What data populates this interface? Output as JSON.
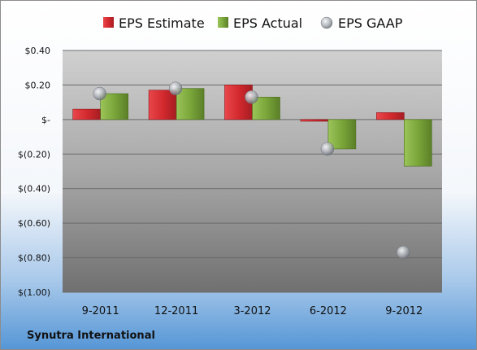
{
  "colors": {
    "estimate": "#d42a2f",
    "actual": "#7aa63a",
    "gaap": "#9fa5ac",
    "frame_top": "#ffffff",
    "frame_bottom": "#5596d6"
  },
  "legend": {
    "estimate_label": "EPS Estimate",
    "actual_label": "EPS Actual",
    "gaap_label": "EPS GAAP"
  },
  "footer": {
    "company": "Synutra International"
  },
  "chart_data": {
    "type": "bar",
    "title": "",
    "xlabel": "",
    "ylabel": "",
    "categories": [
      "9-2011",
      "12-2011",
      "3-2012",
      "6-2012",
      "9-2012"
    ],
    "series": [
      {
        "name": "EPS Estimate",
        "kind": "bar",
        "values": [
          0.06,
          0.17,
          0.2,
          -0.01,
          0.04
        ]
      },
      {
        "name": "EPS Actual",
        "kind": "bar",
        "values": [
          0.15,
          0.18,
          0.13,
          -0.17,
          -0.27
        ]
      },
      {
        "name": "EPS GAAP",
        "kind": "scatter",
        "values": [
          0.15,
          0.18,
          0.13,
          -0.17,
          -0.77
        ]
      }
    ],
    "ylim": [
      -1.0,
      0.4
    ],
    "y_ticks": [
      0.4,
      0.2,
      0,
      -0.2,
      -0.4,
      -0.6,
      -0.8,
      -1.0
    ],
    "y_tick_labels": [
      "$0.40",
      "$0.20",
      "$-",
      "$(0.20)",
      "$(0.40)",
      "$(0.60)",
      "$(0.80)",
      "$(1.00)"
    ],
    "grid": true,
    "legend_position": "top"
  }
}
